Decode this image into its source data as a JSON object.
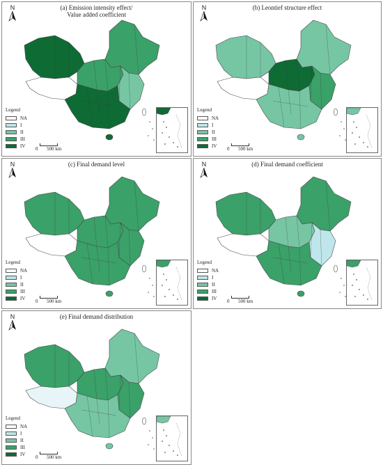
{
  "compass_label": "N",
  "legend": {
    "title": "Legend",
    "classes": [
      {
        "label": "NA",
        "color": "#ffffff"
      },
      {
        "label": "I",
        "color": "#bfe6ea"
      },
      {
        "label": "II",
        "color": "#76c6a4"
      },
      {
        "label": "III",
        "color": "#3aa169"
      },
      {
        "label": "IV",
        "color": "#0e6b34"
      }
    ]
  },
  "scale_bar": {
    "zero": "0",
    "distance": "500 km"
  },
  "panels": [
    {
      "id": "a",
      "title": "(a) Emission intensity effect/\nValue added coefficient",
      "fills": {
        "north": "#3aa169",
        "west": "#0e6b34",
        "tibet": "#ffffff",
        "mid": "#3aa169",
        "east": "#76c6a4",
        "south": "#0e6b34"
      }
    },
    {
      "id": "b",
      "title": "(b) Leontief structure effect",
      "fills": {
        "north": "#76c6a4",
        "west": "#76c6a4",
        "tibet": "#ffffff",
        "mid": "#0e6b34",
        "east": "#3aa169",
        "south": "#76c6a4"
      }
    },
    {
      "id": "c",
      "title": "(c) Final demand level",
      "fills": {
        "north": "#3aa169",
        "west": "#3aa169",
        "tibet": "#ffffff",
        "mid": "#3aa169",
        "east": "#3aa169",
        "south": "#3aa169"
      }
    },
    {
      "id": "d",
      "title": "(d) Final demand coefficient",
      "fills": {
        "north": "#3aa169",
        "west": "#3aa169",
        "tibet": "#ffffff",
        "mid": "#76c6a4",
        "east": "#bfe6ea",
        "south": "#3aa169"
      }
    },
    {
      "id": "e",
      "title": "(e) Final demand distribution",
      "fills": {
        "north": "#76c6a4",
        "west": "#3aa169",
        "tibet": "#e8f5f8",
        "mid": "#3aa169",
        "east": "#3aa169",
        "south": "#76c6a4"
      }
    }
  ]
}
